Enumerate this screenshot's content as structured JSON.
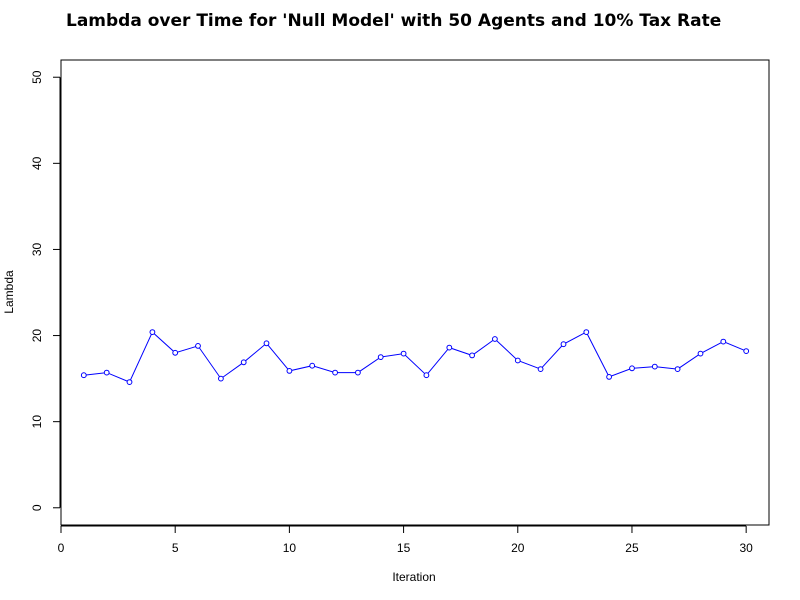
{
  "chart_data": {
    "type": "line",
    "title": "Lambda over Time for 'Null Model' with 50 Agents and 10% Tax Rate",
    "xlabel": "Iteration",
    "ylabel": "Lambda",
    "xlim": [
      0,
      31
    ],
    "ylim": [
      -2,
      52
    ],
    "x_ticks": [
      0,
      5,
      10,
      15,
      20,
      25,
      30
    ],
    "y_ticks": [
      0,
      10,
      20,
      30,
      40,
      50
    ],
    "grid": false,
    "series": [
      {
        "color": "#0000ff",
        "marker": "open-circle",
        "x": [
          1,
          2,
          3,
          4,
          5,
          6,
          7,
          8,
          9,
          10,
          11,
          12,
          13,
          14,
          15,
          16,
          17,
          18,
          19,
          20,
          21,
          22,
          23,
          24,
          25,
          26,
          27,
          28,
          29,
          30
        ],
        "y": [
          15.4,
          15.7,
          14.6,
          20.4,
          18.0,
          18.8,
          15.0,
          16.9,
          19.1,
          15.9,
          16.5,
          15.7,
          15.7,
          17.5,
          17.9,
          15.4,
          18.6,
          17.7,
          19.6,
          17.1,
          16.1,
          19.0,
          20.4,
          15.2,
          16.2,
          16.4,
          16.1,
          17.9,
          19.3,
          18.2
        ]
      }
    ]
  }
}
